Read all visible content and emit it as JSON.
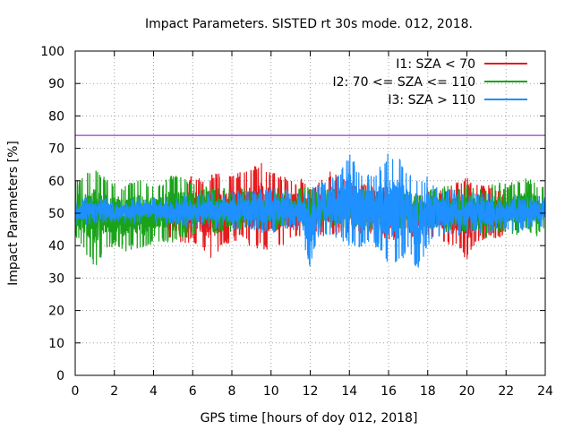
{
  "chart_data": {
    "type": "line",
    "title": "Impact Parameters. SISTED rt 30s mode. 012, 2018.",
    "xlabel": "GPS time [hours of doy 012, 2018]",
    "ylabel": "Impact Parameters [%]",
    "xlim": [
      0,
      24
    ],
    "ylim": [
      0,
      100
    ],
    "grid": true,
    "legend_position": "top-right",
    "x_ticks": [
      {
        "value": 0,
        "label": "0"
      },
      {
        "value": 2,
        "label": "2"
      },
      {
        "value": 4,
        "label": "4"
      },
      {
        "value": 6,
        "label": "6"
      },
      {
        "value": 8,
        "label": "8"
      },
      {
        "value": 10,
        "label": "10"
      },
      {
        "value": 12,
        "label": "12"
      },
      {
        "value": 14,
        "label": "14"
      },
      {
        "value": 16,
        "label": "16"
      },
      {
        "value": 18,
        "label": "18"
      },
      {
        "value": 20,
        "label": "20"
      },
      {
        "value": 22,
        "label": "22"
      },
      {
        "value": 24,
        "label": "24"
      }
    ],
    "y_ticks": [
      {
        "value": 0,
        "label": "0"
      },
      {
        "value": 10,
        "label": "10"
      },
      {
        "value": 20,
        "label": "20"
      },
      {
        "value": 30,
        "label": "30"
      },
      {
        "value": 40,
        "label": "40"
      },
      {
        "value": 50,
        "label": "50"
      },
      {
        "value": 60,
        "label": "60"
      },
      {
        "value": 70,
        "label": "70"
      },
      {
        "value": 80,
        "label": "80"
      },
      {
        "value": 90,
        "label": "90"
      },
      {
        "value": 100,
        "label": "100"
      }
    ],
    "reference_line": {
      "y": 74,
      "color": "#9400d3"
    },
    "series": [
      {
        "name": "I1: SZA < 70",
        "color": "#e41a1c",
        "x": [
          4.5,
          5.0,
          5.5,
          6.0,
          6.5,
          7.0,
          7.5,
          8.0,
          8.5,
          9.0,
          9.5,
          10.0,
          10.5,
          11.0,
          11.5,
          12.0,
          12.5,
          13.0,
          13.5,
          14.0,
          14.5,
          15.0,
          15.5,
          16.0,
          16.5,
          17.0,
          17.5,
          18.0,
          18.5,
          19.0,
          19.5,
          20.0,
          20.5,
          21.0,
          21.5,
          22.0
        ],
        "min": [
          42,
          41,
          40,
          41,
          39,
          35,
          40,
          41,
          42,
          39,
          39,
          38,
          40,
          41,
          42,
          42,
          43,
          42,
          44,
          44,
          43,
          43,
          43,
          41,
          42,
          42,
          43,
          42,
          42,
          40,
          40,
          35,
          41,
          42,
          42,
          43
        ],
        "max": [
          56,
          57,
          58,
          63,
          60,
          62,
          63,
          62,
          63,
          64,
          66,
          63,
          62,
          60,
          61,
          59,
          60,
          63,
          62,
          60,
          59,
          60,
          58,
          58,
          58,
          57,
          56,
          57,
          57,
          58,
          60,
          61,
          59,
          59,
          58,
          56
        ]
      },
      {
        "name": "I2: 70 <= SZA <= 110",
        "color": "#1aa31a",
        "x": [
          0,
          0.5,
          1.0,
          1.5,
          2.0,
          2.5,
          3.0,
          3.5,
          4.0,
          4.5,
          5.0,
          5.5,
          6.0,
          6.5,
          7.0,
          7.5,
          8.0,
          8.5,
          9.0,
          9.5,
          10.0,
          10.5,
          11.0,
          11.5,
          12.0,
          12.5,
          13.0,
          13.5,
          14.0,
          14.5,
          15.0,
          15.5,
          16.0,
          16.5,
          17.0,
          17.5,
          18.0,
          18.5,
          19.0,
          19.5,
          20.0,
          20.5,
          21.0,
          21.5,
          22.0,
          22.5,
          23.0,
          23.5,
          24.0
        ],
        "min": [
          42,
          38,
          33,
          38,
          40,
          38,
          39,
          38,
          41,
          41,
          41,
          42,
          43,
          43,
          43,
          44,
          44,
          44,
          45,
          45,
          44,
          45,
          46,
          45,
          44,
          45,
          45,
          45,
          46,
          45,
          44,
          45,
          45,
          45,
          45,
          45,
          45,
          45,
          44,
          43,
          44,
          45,
          42,
          43,
          44,
          43,
          44,
          42,
          44
        ],
        "max": [
          60,
          62,
          65,
          61,
          60,
          59,
          61,
          60,
          59,
          60,
          62,
          61,
          60,
          59,
          58,
          58,
          57,
          58,
          57,
          57,
          58,
          58,
          57,
          58,
          58,
          57,
          58,
          58,
          57,
          58,
          58,
          57,
          57,
          58,
          57,
          56,
          58,
          58,
          59,
          57,
          60,
          57,
          58,
          60,
          59,
          60,
          61,
          60,
          58
        ]
      },
      {
        "name": "I3: SZA > 110",
        "color": "#1e90ff",
        "x": [
          0,
          0.5,
          1.0,
          1.5,
          2.0,
          2.5,
          3.0,
          3.5,
          4.0,
          4.5,
          5.0,
          5.5,
          6.0,
          6.5,
          7.0,
          7.5,
          8.0,
          8.5,
          9.0,
          9.5,
          10.0,
          10.5,
          11.0,
          11.5,
          12.0,
          12.5,
          13.0,
          13.5,
          14.0,
          14.5,
          15.0,
          15.5,
          16.0,
          16.5,
          17.0,
          17.5,
          18.0,
          18.5,
          19.0,
          19.5,
          20.0,
          20.5,
          21.0,
          21.5,
          22.0,
          22.5,
          23.0,
          23.5,
          24.0
        ],
        "min": [
          46,
          46,
          47,
          47,
          46,
          47,
          46,
          47,
          47,
          46,
          46,
          46,
          45,
          46,
          45,
          45,
          44,
          44,
          45,
          44,
          44,
          44,
          45,
          44,
          33,
          44,
          43,
          42,
          40,
          39,
          40,
          39,
          34,
          34,
          38,
          32,
          40,
          42,
          42,
          43,
          43,
          44,
          43,
          44,
          45,
          44,
          44,
          45,
          46
        ],
        "max": [
          55,
          55,
          55,
          55,
          54,
          54,
          55,
          55,
          55,
          55,
          55,
          56,
          56,
          56,
          57,
          56,
          57,
          57,
          57,
          58,
          58,
          58,
          57,
          57,
          58,
          59,
          61,
          62,
          69,
          63,
          62,
          64,
          69,
          68,
          63,
          60,
          62,
          58,
          58,
          57,
          57,
          56,
          57,
          56,
          55,
          56,
          56,
          55,
          56
        ]
      }
    ]
  }
}
